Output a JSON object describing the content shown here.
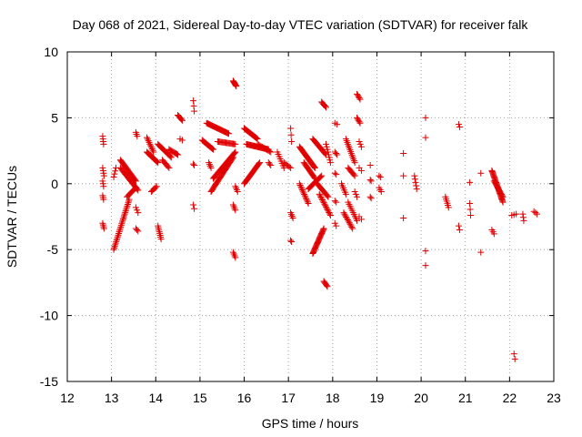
{
  "chart_data": {
    "type": "scatter",
    "title": "Day 068 of 2021, Sidereal Day-to-day VTEC variation (SDTVAR) for receiver falk",
    "xlabel": "GPS time / hours",
    "ylabel": "SDTVAR / TECUs",
    "xlim": [
      12,
      23
    ],
    "ylim": [
      -15,
      10
    ],
    "xticks": [
      12,
      13,
      14,
      15,
      16,
      17,
      18,
      19,
      20,
      21,
      22,
      23
    ],
    "yticks": [
      -15,
      -10,
      -5,
      0,
      5,
      10
    ],
    "xtick_labels": [
      "12",
      "13",
      "14",
      "15",
      "16",
      "17",
      "18",
      "19",
      "20",
      "21",
      "22",
      "23"
    ],
    "ytick_labels": [
      "-15",
      "-10",
      "-5",
      "0",
      "5",
      "10"
    ],
    "grid": true,
    "marker": "+",
    "marker_color": "#e00000",
    "segments": [
      {
        "x0": 12.8,
        "y0": 3.6,
        "x1": 12.82,
        "y1": 3.0,
        "n": 4
      },
      {
        "x0": 12.8,
        "y0": 1.2,
        "x1": 12.83,
        "y1": 0.6,
        "n": 4
      },
      {
        "x0": 12.8,
        "y0": 0.2,
        "x1": 12.82,
        "y1": -0.2,
        "n": 3
      },
      {
        "x0": 12.8,
        "y0": -0.9,
        "x1": 12.82,
        "y1": -1.2,
        "n": 3
      },
      {
        "x0": 12.8,
        "y0": -3.0,
        "x1": 12.83,
        "y1": -3.4,
        "n": 4
      },
      {
        "x0": 13.05,
        "y0": -5.0,
        "x1": 13.4,
        "y1": -1.2,
        "n": 32
      },
      {
        "x0": 13.05,
        "y0": 0.5,
        "x1": 13.1,
        "y1": 1.2,
        "n": 4
      },
      {
        "x0": 13.2,
        "y0": 1.8,
        "x1": 13.55,
        "y1": 0.2,
        "n": 24
      },
      {
        "x0": 13.2,
        "y0": 1.2,
        "x1": 13.6,
        "y1": -0.5,
        "n": 22
      },
      {
        "x0": 13.35,
        "y0": -1.0,
        "x1": 13.55,
        "y1": -0.3,
        "n": 10
      },
      {
        "x0": 13.55,
        "y0": -1.8,
        "x1": 13.6,
        "y1": -2.2,
        "n": 3
      },
      {
        "x0": 13.55,
        "y0": -3.4,
        "x1": 13.6,
        "y1": -3.6,
        "n": 3
      },
      {
        "x0": 13.55,
        "y0": 3.9,
        "x1": 13.58,
        "y1": 3.6,
        "n": 3
      },
      {
        "x0": 13.8,
        "y0": 2.4,
        "x1": 14.05,
        "y1": 1.6,
        "n": 16
      },
      {
        "x0": 13.8,
        "y0": 3.5,
        "x1": 13.95,
        "y1": 2.4,
        "n": 10
      },
      {
        "x0": 13.9,
        "y0": -0.6,
        "x1": 14.02,
        "y1": -0.2,
        "n": 6
      },
      {
        "x0": 14.05,
        "y0": -3.2,
        "x1": 14.12,
        "y1": -4.2,
        "n": 8
      },
      {
        "x0": 14.05,
        "y0": 3.0,
        "x1": 14.35,
        "y1": 2.0,
        "n": 16
      },
      {
        "x0": 14.15,
        "y0": 1.8,
        "x1": 14.3,
        "y1": 1.2,
        "n": 8
      },
      {
        "x0": 14.3,
        "y0": 2.6,
        "x1": 14.5,
        "y1": 2.2,
        "n": 10
      },
      {
        "x0": 14.5,
        "y0": 5.2,
        "x1": 14.6,
        "y1": 4.8,
        "n": 6
      },
      {
        "x0": 14.55,
        "y0": 3.4,
        "x1": 14.6,
        "y1": 3.3,
        "n": 2
      },
      {
        "x0": 14.85,
        "y0": 6.3,
        "x1": 14.87,
        "y1": 5.5,
        "n": 3
      },
      {
        "x0": 14.85,
        "y0": 1.5,
        "x1": 14.87,
        "y1": 1.4,
        "n": 2
      },
      {
        "x0": 14.85,
        "y0": -1.6,
        "x1": 14.87,
        "y1": -1.9,
        "n": 2
      },
      {
        "x0": 15.05,
        "y0": 3.3,
        "x1": 15.3,
        "y1": 2.6,
        "n": 14
      },
      {
        "x0": 15.15,
        "y0": 4.6,
        "x1": 15.65,
        "y1": 3.8,
        "n": 28
      },
      {
        "x0": 15.2,
        "y0": 1.6,
        "x1": 15.25,
        "y1": 1.2,
        "n": 4
      },
      {
        "x0": 15.25,
        "y0": -0.6,
        "x1": 15.75,
        "y1": 2.0,
        "n": 34
      },
      {
        "x0": 15.3,
        "y0": 0.4,
        "x1": 15.8,
        "y1": 2.4,
        "n": 30
      },
      {
        "x0": 15.4,
        "y0": 3.2,
        "x1": 15.8,
        "y1": 3.0,
        "n": 18
      },
      {
        "x0": 15.75,
        "y0": 7.8,
        "x1": 15.82,
        "y1": 7.4,
        "n": 8
      },
      {
        "x0": 15.75,
        "y0": -1.6,
        "x1": 15.8,
        "y1": -2.0,
        "n": 4
      },
      {
        "x0": 15.75,
        "y0": -5.2,
        "x1": 15.8,
        "y1": -5.6,
        "n": 4
      },
      {
        "x0": 15.8,
        "y0": -0.2,
        "x1": 15.85,
        "y1": -0.6,
        "n": 4
      },
      {
        "x0": 16.0,
        "y0": 0.0,
        "x1": 16.35,
        "y1": 1.6,
        "n": 24
      },
      {
        "x0": 16.0,
        "y0": 4.2,
        "x1": 16.3,
        "y1": 3.4,
        "n": 18
      },
      {
        "x0": 16.05,
        "y0": 3.0,
        "x1": 16.55,
        "y1": 2.6,
        "n": 28
      },
      {
        "x0": 16.3,
        "y0": 3.0,
        "x1": 16.6,
        "y1": 2.4,
        "n": 12
      },
      {
        "x0": 16.55,
        "y0": 1.6,
        "x1": 16.6,
        "y1": 1.4,
        "n": 3
      },
      {
        "x0": 16.75,
        "y0": 2.4,
        "x1": 16.9,
        "y1": 1.2,
        "n": 8
      },
      {
        "x0": 16.9,
        "y0": 1.6,
        "x1": 17.05,
        "y1": 1.2,
        "n": 6
      },
      {
        "x0": 17.05,
        "y0": 4.2,
        "x1": 17.07,
        "y1": 3.2,
        "n": 3
      },
      {
        "x0": 17.05,
        "y0": -2.2,
        "x1": 17.1,
        "y1": -2.6,
        "n": 4
      },
      {
        "x0": 17.05,
        "y0": -4.3,
        "x1": 17.07,
        "y1": -4.4,
        "n": 2
      },
      {
        "x0": 17.25,
        "y0": 2.8,
        "x1": 17.6,
        "y1": 1.2,
        "n": 26
      },
      {
        "x0": 17.25,
        "y0": 0.0,
        "x1": 17.45,
        "y1": -1.5,
        "n": 14
      },
      {
        "x0": 17.35,
        "y0": 1.6,
        "x1": 17.6,
        "y1": 0.4,
        "n": 16
      },
      {
        "x0": 17.45,
        "y0": -0.4,
        "x1": 17.75,
        "y1": 0.6,
        "n": 16
      },
      {
        "x0": 17.55,
        "y0": 3.4,
        "x1": 17.85,
        "y1": 2.2,
        "n": 18
      },
      {
        "x0": 17.55,
        "y0": -5.3,
        "x1": 17.8,
        "y1": -3.4,
        "n": 26
      },
      {
        "x0": 17.65,
        "y0": 0.0,
        "x1": 17.9,
        "y1": -1.0,
        "n": 14
      },
      {
        "x0": 17.7,
        "y0": -0.8,
        "x1": 17.95,
        "y1": -2.4,
        "n": 16
      },
      {
        "x0": 17.75,
        "y0": 6.2,
        "x1": 17.85,
        "y1": 5.8,
        "n": 6
      },
      {
        "x0": 17.8,
        "y0": -7.4,
        "x1": 17.88,
        "y1": -7.8,
        "n": 6
      },
      {
        "x0": 17.85,
        "y0": 3.0,
        "x1": 17.95,
        "y1": 1.6,
        "n": 8
      },
      {
        "x0": 18.05,
        "y0": 4.6,
        "x1": 18.1,
        "y1": 4.5,
        "n": 2
      },
      {
        "x0": 18.05,
        "y0": 2.4,
        "x1": 18.1,
        "y1": 2.2,
        "n": 3
      },
      {
        "x0": 18.05,
        "y0": 0.8,
        "x1": 18.08,
        "y1": 0.7,
        "n": 2
      },
      {
        "x0": 18.05,
        "y0": -1.3,
        "x1": 18.08,
        "y1": -1.4,
        "n": 2
      },
      {
        "x0": 18.05,
        "y0": -3.0,
        "x1": 18.08,
        "y1": -3.2,
        "n": 2
      },
      {
        "x0": 18.2,
        "y0": 0.0,
        "x1": 18.3,
        "y1": -0.8,
        "n": 6
      },
      {
        "x0": 18.25,
        "y0": -2.2,
        "x1": 18.45,
        "y1": -3.4,
        "n": 12
      },
      {
        "x0": 18.3,
        "y0": 3.4,
        "x1": 18.5,
        "y1": 1.6,
        "n": 14
      },
      {
        "x0": 18.35,
        "y0": 1.2,
        "x1": 18.5,
        "y1": 0.6,
        "n": 8
      },
      {
        "x0": 18.35,
        "y0": -1.4,
        "x1": 18.55,
        "y1": -2.8,
        "n": 10
      },
      {
        "x0": 18.5,
        "y0": -0.6,
        "x1": 18.55,
        "y1": -1.0,
        "n": 3
      },
      {
        "x0": 18.55,
        "y0": 6.8,
        "x1": 18.62,
        "y1": 6.4,
        "n": 5
      },
      {
        "x0": 18.55,
        "y0": 5.0,
        "x1": 18.62,
        "y1": 4.6,
        "n": 5
      },
      {
        "x0": 18.6,
        "y0": 3.2,
        "x1": 18.65,
        "y1": 2.8,
        "n": 3
      },
      {
        "x0": 18.6,
        "y0": 1.2,
        "x1": 18.65,
        "y1": 1.0,
        "n": 2
      },
      {
        "x0": 18.6,
        "y0": -2.5,
        "x1": 18.65,
        "y1": -2.7,
        "n": 2
      },
      {
        "x0": 18.85,
        "y0": 1.4,
        "x1": 18.87,
        "y1": 1.4,
        "n": 1
      },
      {
        "x0": 18.85,
        "y0": 0.3,
        "x1": 18.87,
        "y1": 0.2,
        "n": 2
      },
      {
        "x0": 18.85,
        "y0": -1.0,
        "x1": 18.87,
        "y1": -1.1,
        "n": 2
      },
      {
        "x0": 19.05,
        "y0": 0.6,
        "x1": 19.08,
        "y1": 0.5,
        "n": 2
      },
      {
        "x0": 19.05,
        "y0": -0.3,
        "x1": 19.1,
        "y1": -0.6,
        "n": 3
      },
      {
        "x0": 19.6,
        "y0": 2.3,
        "x1": 19.6,
        "y1": 2.3,
        "n": 1
      },
      {
        "x0": 19.6,
        "y0": 0.6,
        "x1": 19.6,
        "y1": 0.6,
        "n": 1
      },
      {
        "x0": 19.6,
        "y0": -2.6,
        "x1": 19.6,
        "y1": -2.6,
        "n": 1
      },
      {
        "x0": 19.85,
        "y0": 0.6,
        "x1": 19.9,
        "y1": -0.4,
        "n": 5
      },
      {
        "x0": 20.1,
        "y0": 5.0,
        "x1": 20.1,
        "y1": 5.0,
        "n": 1
      },
      {
        "x0": 20.1,
        "y0": 3.5,
        "x1": 20.1,
        "y1": 3.5,
        "n": 1
      },
      {
        "x0": 20.1,
        "y0": -5.1,
        "x1": 20.1,
        "y1": -5.1,
        "n": 1
      },
      {
        "x0": 20.1,
        "y0": -6.2,
        "x1": 20.1,
        "y1": -6.2,
        "n": 1
      },
      {
        "x0": 20.55,
        "y0": -1.0,
        "x1": 20.62,
        "y1": -1.8,
        "n": 6
      },
      {
        "x0": 20.85,
        "y0": 4.5,
        "x1": 20.87,
        "y1": 4.3,
        "n": 2
      },
      {
        "x0": 20.85,
        "y0": -3.2,
        "x1": 20.87,
        "y1": -3.5,
        "n": 2
      },
      {
        "x0": 21.1,
        "y0": 0.1,
        "x1": 21.1,
        "y1": 0.1,
        "n": 1
      },
      {
        "x0": 21.1,
        "y0": -1.5,
        "x1": 21.12,
        "y1": -2.4,
        "n": 3
      },
      {
        "x0": 21.35,
        "y0": 0.8,
        "x1": 21.35,
        "y1": 0.8,
        "n": 1
      },
      {
        "x0": 21.35,
        "y0": -5.2,
        "x1": 21.35,
        "y1": -5.2,
        "n": 1
      },
      {
        "x0": 21.6,
        "y0": 1.0,
        "x1": 21.85,
        "y1": -1.4,
        "n": 30
      },
      {
        "x0": 21.65,
        "y0": 0.2,
        "x1": 21.85,
        "y1": -1.0,
        "n": 14
      },
      {
        "x0": 21.6,
        "y0": -3.5,
        "x1": 21.65,
        "y1": -3.8,
        "n": 3
      },
      {
        "x0": 22.05,
        "y0": -2.4,
        "x1": 22.15,
        "y1": -2.3,
        "n": 3
      },
      {
        "x0": 22.1,
        "y0": -12.9,
        "x1": 22.12,
        "y1": -13.3,
        "n": 2
      },
      {
        "x0": 22.3,
        "y0": -2.3,
        "x1": 22.32,
        "y1": -2.8,
        "n": 3
      },
      {
        "x0": 22.55,
        "y0": -2.1,
        "x1": 22.62,
        "y1": -2.3,
        "n": 3
      }
    ]
  }
}
